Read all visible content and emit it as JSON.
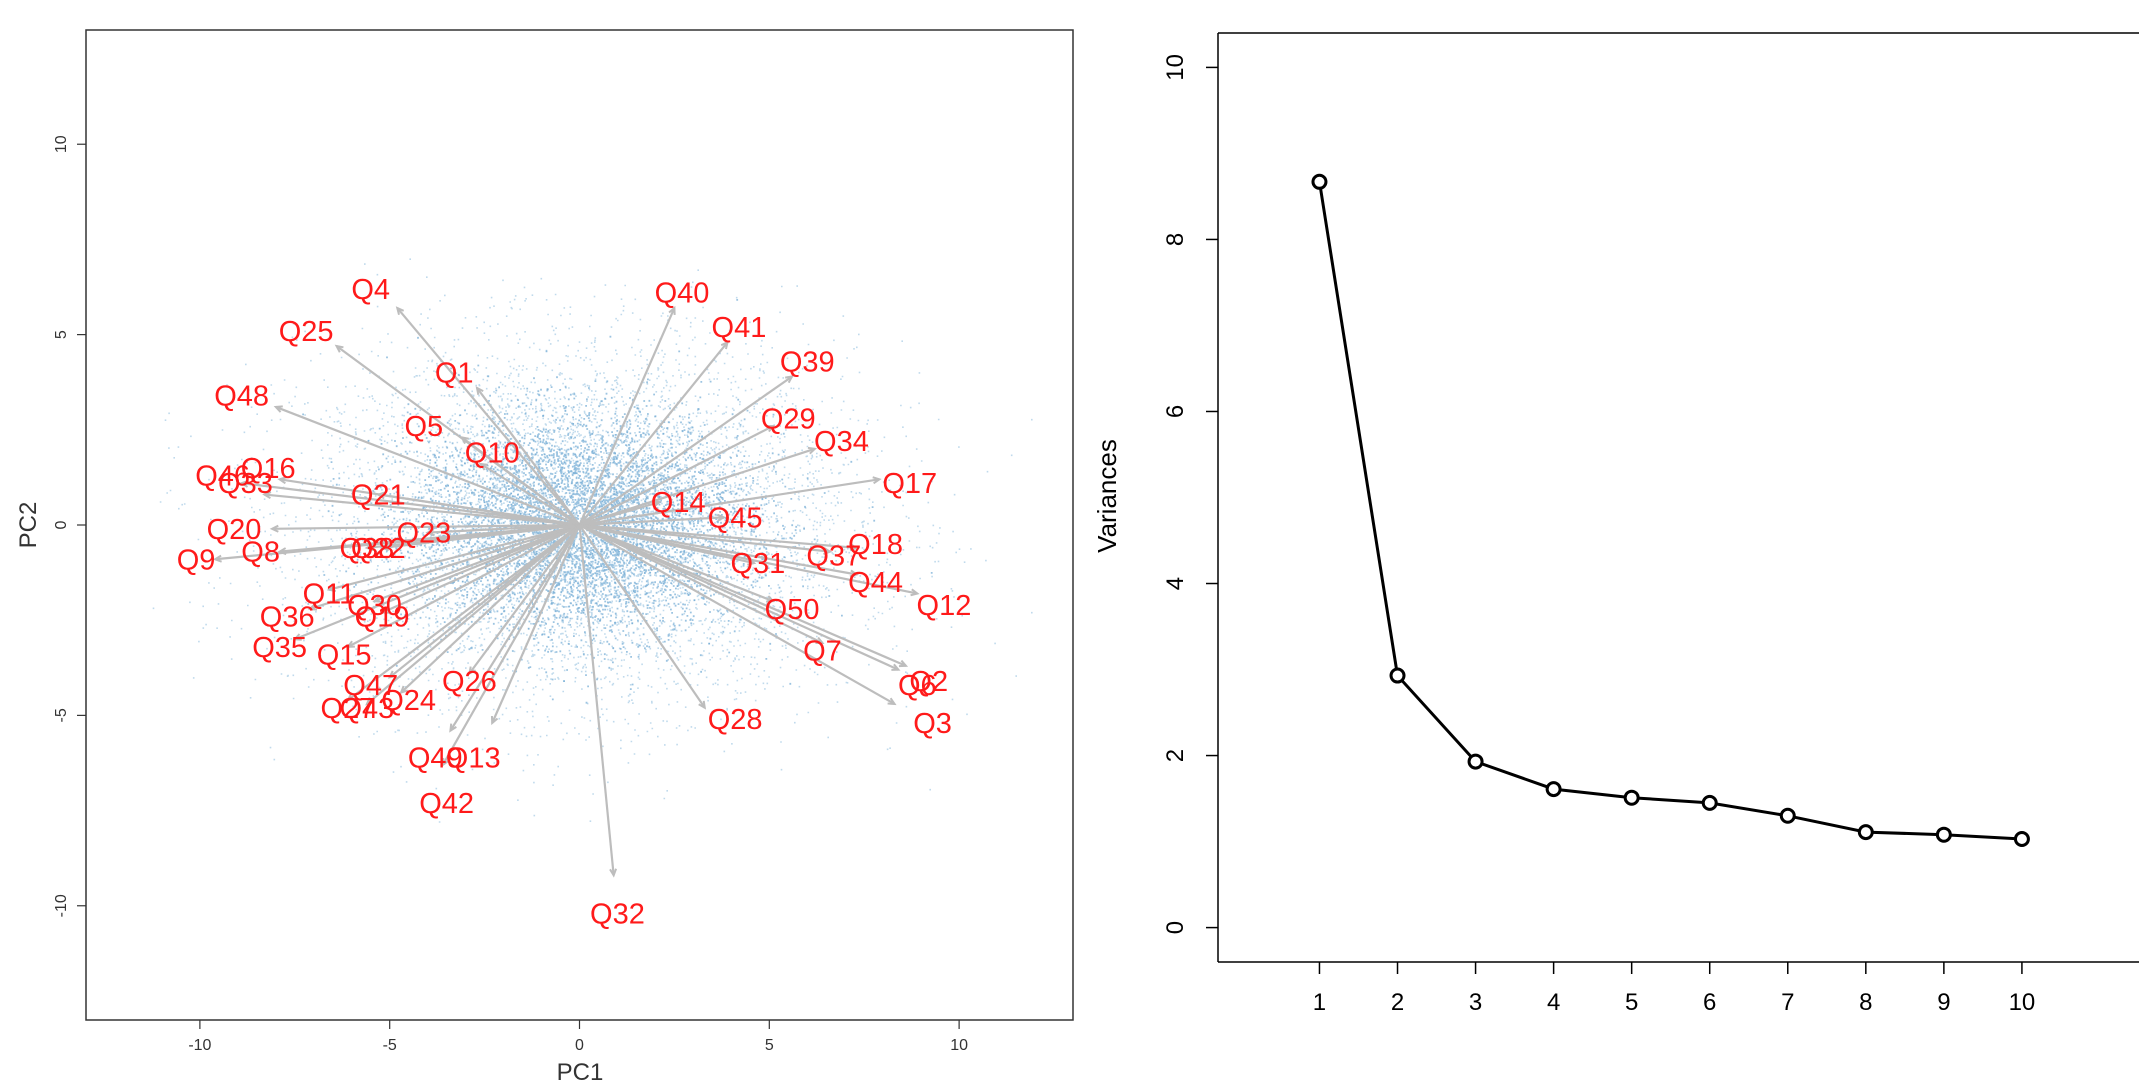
{
  "chart_data": [
    {
      "type": "scatter",
      "subtype": "pca-biplot",
      "title": "",
      "xlabel": "PC1",
      "ylabel": "PC2",
      "xlim": [
        -13,
        13
      ],
      "ylim": [
        -13,
        13
      ],
      "xticks": [
        -10,
        -5,
        0,
        5,
        10
      ],
      "yticks": [
        -10,
        -5,
        0,
        5,
        10
      ],
      "xtick_labels": [
        "-10",
        "-5",
        "0",
        "5",
        "10"
      ],
      "ytick_labels": [
        "-10",
        "-5",
        "0",
        "5",
        "10"
      ],
      "point_color": "#4a94c8",
      "arrow_color": "#bdbdbd",
      "label_color": "#ff1a1a",
      "points_cloud": {
        "center": [
          0,
          0
        ],
        "sd": [
          3.6,
          2.3
        ],
        "x_range": [
          -11.5,
          12
        ],
        "y_range": [
          -8,
          7
        ]
      },
      "loadings": [
        {
          "name": "Q4",
          "x": -4.8,
          "y": 5.7,
          "label_x": -5.5,
          "label_y": 6.2
        },
        {
          "name": "Q40",
          "x": 2.5,
          "y": 5.7,
          "label_x": 2.7,
          "label_y": 6.1
        },
        {
          "name": "Q25",
          "x": -6.4,
          "y": 4.7,
          "label_x": -7.2,
          "label_y": 5.1
        },
        {
          "name": "Q41",
          "x": 3.9,
          "y": 4.8,
          "label_x": 4.2,
          "label_y": 5.2
        },
        {
          "name": "Q1",
          "x": -2.7,
          "y": 3.6,
          "label_x": -3.3,
          "label_y": 4.0
        },
        {
          "name": "Q39",
          "x": 5.6,
          "y": 3.9,
          "label_x": 6.0,
          "label_y": 4.3
        },
        {
          "name": "Q48",
          "x": -8.0,
          "y": 3.1,
          "label_x": -8.9,
          "label_y": 3.4
        },
        {
          "name": "Q5",
          "x": -3.1,
          "y": 2.3,
          "label_x": -4.1,
          "label_y": 2.6
        },
        {
          "name": "Q29",
          "x": 5.1,
          "y": 2.6,
          "label_x": 5.5,
          "label_y": 2.8
        },
        {
          "name": "Q10",
          "x": -2.6,
          "y": 1.6,
          "label_x": -2.3,
          "label_y": 1.9
        },
        {
          "name": "Q34",
          "x": 6.2,
          "y": 2.0,
          "label_x": 6.9,
          "label_y": 2.2
        },
        {
          "name": "Q16",
          "x": -7.9,
          "y": 1.2,
          "label_x": -8.2,
          "label_y": 1.5
        },
        {
          "name": "Q46",
          "x": -8.9,
          "y": 1.1,
          "label_x": -9.4,
          "label_y": 1.3
        },
        {
          "name": "Q33",
          "x": -8.3,
          "y": 0.8,
          "label_x": -8.8,
          "label_y": 1.1
        },
        {
          "name": "Q17",
          "x": 7.9,
          "y": 1.2,
          "label_x": 8.7,
          "label_y": 1.1
        },
        {
          "name": "Q21",
          "x": -5.3,
          "y": 0.8,
          "label_x": -5.3,
          "label_y": 0.8
        },
        {
          "name": "Q14",
          "x": 2.1,
          "y": 0.6,
          "label_x": 2.6,
          "label_y": 0.6
        },
        {
          "name": "Q45",
          "x": 3.8,
          "y": 0.2,
          "label_x": 4.1,
          "label_y": 0.2
        },
        {
          "name": "Q20",
          "x": -8.1,
          "y": -0.1,
          "label_x": -9.1,
          "label_y": -0.1
        },
        {
          "name": "Q23",
          "x": -4.0,
          "y": -0.2,
          "label_x": -4.1,
          "label_y": -0.2
        },
        {
          "name": "Q9",
          "x": -9.6,
          "y": -0.9,
          "label_x": -10.1,
          "label_y": -0.9
        },
        {
          "name": "Q8",
          "x": -7.9,
          "y": -0.7,
          "label_x": -8.4,
          "label_y": -0.7
        },
        {
          "name": "Q38",
          "x": -5.6,
          "y": -0.6,
          "label_x": -5.6,
          "label_y": -0.6
        },
        {
          "name": "Q22",
          "x": -5.2,
          "y": -0.6,
          "label_x": -5.3,
          "label_y": -0.6
        },
        {
          "name": "Q18",
          "x": 7.3,
          "y": -0.6,
          "label_x": 7.8,
          "label_y": -0.5
        },
        {
          "name": "Q37",
          "x": 6.6,
          "y": -0.7,
          "label_x": 6.7,
          "label_y": -0.8
        },
        {
          "name": "Q31",
          "x": 4.6,
          "y": -1.0,
          "label_x": 4.7,
          "label_y": -1.0
        },
        {
          "name": "Q44",
          "x": 7.3,
          "y": -1.3,
          "label_x": 7.8,
          "label_y": -1.5
        },
        {
          "name": "Q11",
          "x": -6.6,
          "y": -1.7,
          "label_x": -6.6,
          "label_y": -1.8
        },
        {
          "name": "Q12",
          "x": 8.9,
          "y": -1.8,
          "label_x": 9.6,
          "label_y": -2.1
        },
        {
          "name": "Q30",
          "x": -5.4,
          "y": -2.0,
          "label_x": -5.4,
          "label_y": -2.1
        },
        {
          "name": "Q36",
          "x": -7.1,
          "y": -2.2,
          "label_x": -7.7,
          "label_y": -2.4
        },
        {
          "name": "Q19",
          "x": -5.2,
          "y": -2.3,
          "label_x": -5.2,
          "label_y": -2.4
        },
        {
          "name": "Q50",
          "x": 5.1,
          "y": -2.0,
          "label_x": 5.6,
          "label_y": -2.2
        },
        {
          "name": "Q35",
          "x": -7.5,
          "y": -3.0,
          "label_x": -7.9,
          "label_y": -3.2
        },
        {
          "name": "Q15",
          "x": -6.1,
          "y": -3.2,
          "label_x": -6.2,
          "label_y": -3.4
        },
        {
          "name": "Q7",
          "x": 6.4,
          "y": -3.1,
          "label_x": 6.4,
          "label_y": -3.3
        },
        {
          "name": "Q6",
          "x": 8.4,
          "y": -3.8,
          "label_x": 8.9,
          "label_y": -4.2
        },
        {
          "name": "Q2",
          "x": 8.6,
          "y": -3.7,
          "label_x": 9.2,
          "label_y": -4.1
        },
        {
          "name": "Q47",
          "x": -5.0,
          "y": -4.0,
          "label_x": -5.5,
          "label_y": -4.2
        },
        {
          "name": "Q26",
          "x": -2.9,
          "y": -3.9,
          "label_x": -2.9,
          "label_y": -4.1
        },
        {
          "name": "Q3",
          "x": 8.3,
          "y": -4.7,
          "label_x": 9.3,
          "label_y": -5.2
        },
        {
          "name": "Q27",
          "x": -6.1,
          "y": -4.6,
          "label_x": -6.1,
          "label_y": -4.8
        },
        {
          "name": "Q43",
          "x": -5.6,
          "y": -4.7,
          "label_x": -5.6,
          "label_y": -4.8
        },
        {
          "name": "Q24",
          "x": -4.7,
          "y": -4.4,
          "label_x": -4.5,
          "label_y": -4.6
        },
        {
          "name": "Q28",
          "x": 3.3,
          "y": -4.8,
          "label_x": 4.1,
          "label_y": -5.1
        },
        {
          "name": "Q49",
          "x": -3.4,
          "y": -5.4,
          "label_x": -3.8,
          "label_y": -6.1
        },
        {
          "name": "Q13",
          "x": -2.3,
          "y": -5.2,
          "label_x": -2.8,
          "label_y": -6.1
        },
        {
          "name": "Q42",
          "x": -3.6,
          "y": -6.3,
          "label_x": -3.5,
          "label_y": -7.3
        },
        {
          "name": "Q32",
          "x": 0.9,
          "y": -9.2,
          "label_x": 1.0,
          "label_y": -10.2
        }
      ]
    },
    {
      "type": "line",
      "subtype": "scree",
      "title": "",
      "xlabel": "",
      "ylabel": "Variances",
      "x": [
        1,
        2,
        3,
        4,
        5,
        6,
        7,
        8,
        9,
        10
      ],
      "values": [
        8.67,
        2.93,
        1.93,
        1.61,
        1.51,
        1.45,
        1.3,
        1.11,
        1.08,
        1.03
      ],
      "xlim": [
        -0.3,
        11.5
      ],
      "ylim": [
        -0.4,
        10.4
      ],
      "xticks": [
        1,
        2,
        3,
        4,
        5,
        6,
        7,
        8,
        9,
        10
      ],
      "xtick_labels": [
        "1",
        "2",
        "3",
        "4",
        "5",
        "6",
        "7",
        "8",
        "9",
        "10"
      ],
      "yticks": [
        0,
        2,
        4,
        6,
        8,
        10
      ],
      "ytick_labels": [
        "0",
        "2",
        "4",
        "6",
        "8",
        "10"
      ],
      "marker": "open-circle",
      "line_color": "#000000"
    }
  ]
}
